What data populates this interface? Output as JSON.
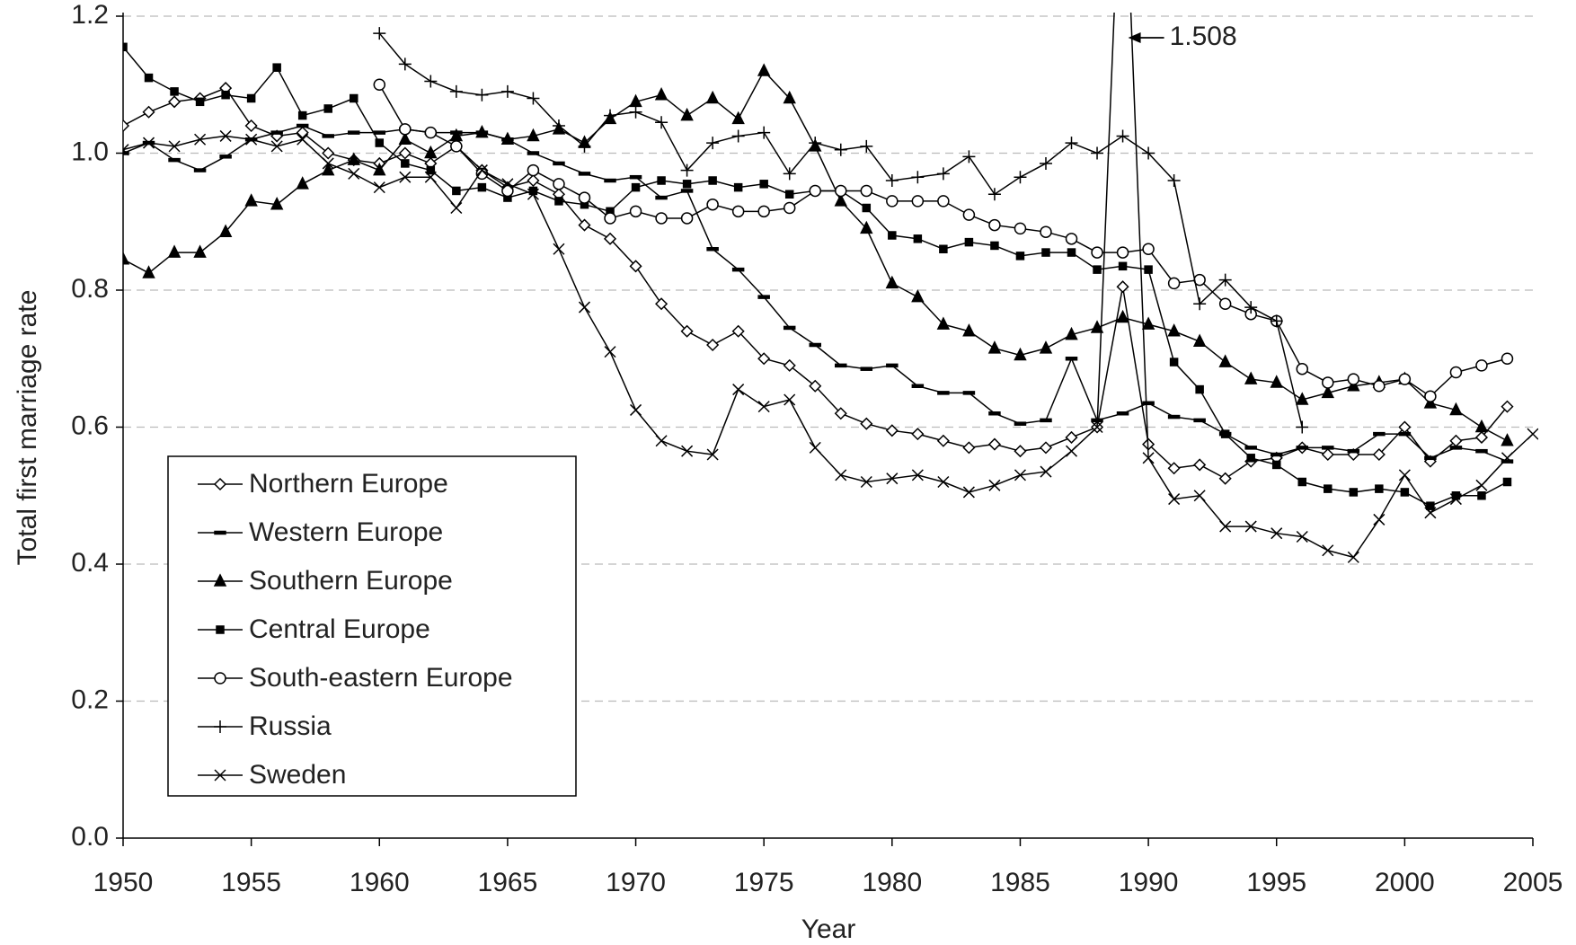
{
  "chart_data": {
    "type": "line",
    "x_label": "Year",
    "y_label": "Total first marriage rate",
    "x": [
      1950,
      1951,
      1952,
      1953,
      1954,
      1955,
      1956,
      1957,
      1958,
      1959,
      1960,
      1961,
      1962,
      1963,
      1964,
      1965,
      1966,
      1967,
      1968,
      1969,
      1970,
      1971,
      1972,
      1973,
      1974,
      1975,
      1976,
      1977,
      1978,
      1979,
      1980,
      1981,
      1982,
      1983,
      1984,
      1985,
      1986,
      1987,
      1988,
      1989,
      1990,
      1991,
      1992,
      1993,
      1994,
      1995,
      1996,
      1997,
      1998,
      1999,
      2000,
      2001,
      2002,
      2003,
      2004,
      2005
    ],
    "xlim": [
      1950,
      2005
    ],
    "xticks": [
      1950,
      1955,
      1960,
      1965,
      1970,
      1975,
      1980,
      1985,
      1990,
      1995,
      2000,
      2005
    ],
    "ylim": [
      0,
      1.2
    ],
    "yticks": [
      {
        "value": 0,
        "label": "0.0"
      },
      0.2,
      0.4,
      0.6,
      0.8,
      {
        "value": 1,
        "label": "1.0"
      },
      1.2
    ],
    "grid": true,
    "legend": "lower left",
    "annotations": [
      {
        "text": "1.508"
      }
    ],
    "series": [
      {
        "name": "Northern Europe",
        "color": "#000000",
        "marker": "diamond",
        "values": [
          1.04,
          1.06,
          1.075,
          1.08,
          1.095,
          1.04,
          1.025,
          1.03,
          1.0,
          0.99,
          0.985,
          1.0,
          0.985,
          1.01,
          0.975,
          0.95,
          0.96,
          0.94,
          0.895,
          0.875,
          0.835,
          0.78,
          0.74,
          0.72,
          0.74,
          0.7,
          0.69,
          0.66,
          0.62,
          0.605,
          0.595,
          0.59,
          0.58,
          0.57,
          0.575,
          0.565,
          0.57,
          0.585,
          0.6,
          0.805,
          0.575,
          0.54,
          0.545,
          0.525,
          0.55,
          0.555,
          0.57,
          0.56,
          0.56,
          0.56,
          0.6,
          0.55,
          0.58,
          0.585,
          0.63,
          null
        ]
      },
      {
        "name": "Western Europe",
        "color": "#000000",
        "marker": "dash",
        "values": [
          1.0,
          1.015,
          0.99,
          0.975,
          0.995,
          1.02,
          1.03,
          1.04,
          1.025,
          1.03,
          1.03,
          1.035,
          1.03,
          1.03,
          1.03,
          1.02,
          1.0,
          0.985,
          0.97,
          0.96,
          0.965,
          0.935,
          0.945,
          0.86,
          0.83,
          0.79,
          0.745,
          0.72,
          0.69,
          0.685,
          0.69,
          0.66,
          0.65,
          0.65,
          0.62,
          0.605,
          0.61,
          0.7,
          0.61,
          0.62,
          0.635,
          0.615,
          0.61,
          0.59,
          0.57,
          0.56,
          0.57,
          0.57,
          0.565,
          0.59,
          0.59,
          0.555,
          0.57,
          0.565,
          0.55,
          null
        ]
      },
      {
        "name": "Southern Europe",
        "color": "#000000",
        "marker": "triangle",
        "values": [
          0.845,
          0.825,
          0.855,
          0.855,
          0.885,
          0.93,
          0.925,
          0.955,
          0.975,
          0.99,
          0.975,
          1.02,
          1.0,
          1.025,
          1.03,
          1.02,
          1.025,
          1.035,
          1.015,
          1.05,
          1.075,
          1.085,
          1.055,
          1.08,
          1.05,
          1.12,
          1.08,
          1.01,
          0.93,
          0.89,
          0.81,
          0.79,
          0.75,
          0.74,
          0.715,
          0.705,
          0.715,
          0.735,
          0.745,
          0.76,
          0.75,
          0.74,
          0.725,
          0.695,
          0.67,
          0.665,
          0.64,
          0.65,
          0.66,
          0.665,
          0.67,
          0.635,
          0.625,
          0.6,
          0.58,
          null
        ]
      },
      {
        "name": "Central Europe",
        "color": "#000000",
        "marker": "square",
        "values": [
          1.155,
          1.11,
          1.09,
          1.075,
          1.085,
          1.08,
          1.125,
          1.055,
          1.065,
          1.08,
          1.015,
          0.985,
          0.975,
          0.945,
          0.95,
          0.935,
          0.945,
          0.93,
          0.925,
          0.915,
          0.95,
          0.96,
          0.955,
          0.96,
          0.95,
          0.955,
          0.94,
          0.945,
          0.945,
          0.92,
          0.88,
          0.875,
          0.86,
          0.87,
          0.865,
          0.85,
          0.855,
          0.855,
          0.83,
          0.835,
          0.83,
          0.695,
          0.655,
          0.59,
          0.555,
          0.545,
          0.52,
          0.51,
          0.505,
          0.51,
          0.505,
          0.485,
          0.5,
          0.5,
          0.52,
          null
        ]
      },
      {
        "name": "South-eastern Europe",
        "color": "#000000",
        "marker": "circle",
        "values": [
          null,
          null,
          null,
          null,
          null,
          null,
          null,
          null,
          null,
          null,
          1.1,
          1.035,
          1.03,
          1.01,
          0.97,
          0.945,
          0.975,
          0.955,
          0.935,
          0.905,
          0.915,
          0.905,
          0.905,
          0.925,
          0.915,
          0.915,
          0.92,
          0.945,
          0.945,
          0.945,
          0.93,
          0.93,
          0.93,
          0.91,
          0.895,
          0.89,
          0.885,
          0.875,
          0.855,
          0.855,
          0.86,
          0.81,
          0.815,
          0.78,
          0.765,
          0.755,
          0.685,
          0.665,
          0.67,
          0.66,
          0.67,
          0.645,
          0.68,
          0.69,
          0.7,
          null
        ]
      },
      {
        "name": "Russia",
        "color": "#000000",
        "marker": "plus",
        "values": [
          null,
          null,
          null,
          null,
          null,
          null,
          null,
          null,
          null,
          null,
          1.175,
          1.13,
          1.105,
          1.09,
          1.085,
          1.09,
          1.08,
          1.04,
          1.01,
          1.055,
          1.06,
          1.045,
          0.975,
          1.015,
          1.025,
          1.03,
          0.97,
          1.015,
          1.005,
          1.01,
          0.96,
          0.965,
          0.97,
          0.995,
          0.94,
          0.965,
          0.985,
          1.015,
          1.0,
          1.025,
          1.0,
          0.96,
          0.78,
          0.815,
          0.775,
          0.755,
          0.6,
          null,
          null,
          null,
          null,
          null,
          null,
          null,
          null,
          null
        ]
      },
      {
        "name": "Sweden",
        "color": "#000000",
        "marker": "cross",
        "values": [
          1.005,
          1.015,
          1.01,
          1.02,
          1.025,
          1.02,
          1.01,
          1.02,
          0.985,
          0.97,
          0.95,
          0.965,
          0.965,
          0.92,
          0.975,
          0.955,
          0.94,
          0.86,
          0.775,
          0.71,
          0.625,
          0.58,
          0.565,
          0.56,
          0.655,
          0.63,
          0.64,
          0.57,
          0.53,
          0.52,
          0.525,
          0.53,
          0.52,
          0.505,
          0.515,
          0.53,
          0.535,
          0.565,
          0.6,
          1.508,
          0.555,
          0.495,
          0.5,
          0.455,
          0.455,
          0.445,
          0.44,
          0.42,
          0.41,
          0.465,
          0.53,
          0.475,
          0.495,
          0.515,
          0.555,
          0.59
        ]
      }
    ]
  }
}
